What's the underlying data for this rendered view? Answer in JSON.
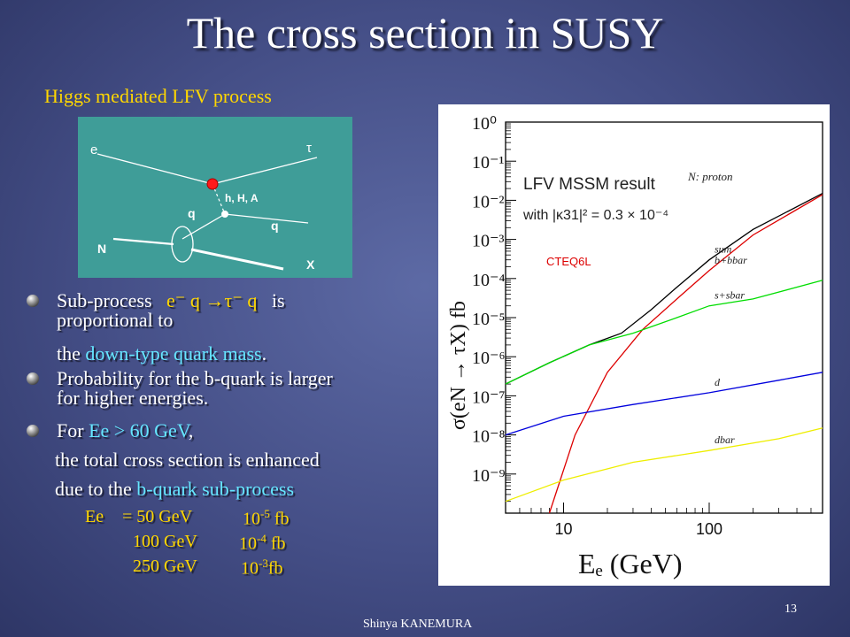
{
  "slide": {
    "title": "The cross section in SUSY",
    "subtitle": "Higgs mediated LFV process",
    "page_number": "13",
    "footer": "Shinya KANEMURA"
  },
  "diagram": {
    "labels": {
      "e": "e",
      "tau": "τ",
      "higgs": "h, H, A",
      "q_left": "q",
      "q_right": "q",
      "N": "N",
      "X": "X"
    }
  },
  "bullets": {
    "b1_prefix": "Sub-process",
    "b1_process": "e⁻ q →τ⁻ q",
    "b1_suffix": "is",
    "b1_line2": "proportional to",
    "b1_line3_prefix": "the",
    "b1_line3_hl": "down-type quark mass",
    "b1_line3_suffix": ".",
    "b2_line1": "Probability for the b-quark is larger",
    "b2_line2": "for higher energies.",
    "b3_prefix": "For",
    "b3_hl": "Ee > 60 GeV",
    "b3_suffix": ",",
    "b3_line2": "the total cross section is enhanced",
    "b3_line3_prefix": "due to the",
    "b3_line3_hl": "b-quark sub-process"
  },
  "energy_table": {
    "label": "Ee",
    "rows": [
      {
        "energy": "= 50 GeV",
        "base": "10",
        "exp": "-5",
        "unit": " fb"
      },
      {
        "energy": "100 GeV",
        "base": "10",
        "exp": "-4",
        "unit": " fb"
      },
      {
        "energy": "250 GeV",
        "base": "10",
        "exp": "-3",
        "unit": "fb"
      }
    ]
  },
  "chart_data": {
    "type": "line",
    "title": "LFV MSSM result",
    "subtitle": "with |κ31|² = 0.3 × 10⁻⁴",
    "note": "N: proton",
    "pdf_label": "CTEQ6L",
    "xlabel": "Eₑ (GeV)",
    "ylabel": "σ(eN → τX) fb",
    "xscale": "log",
    "yscale": "log",
    "xlim": [
      4,
      600
    ],
    "ylim": [
      1e-10,
      1
    ],
    "x_ticks": [
      "10",
      "100"
    ],
    "y_ticks": [
      "10⁰",
      "10⁻¹",
      "10⁻²",
      "10⁻³",
      "10⁻⁴",
      "10⁻⁵",
      "10⁻⁶",
      "10⁻⁷",
      "10⁻⁸",
      "10⁻⁹"
    ],
    "series": [
      {
        "name": "sum",
        "color": "#000000",
        "x": [
          4,
          8,
          15,
          25,
          40,
          60,
          100,
          200,
          600
        ],
        "y": [
          2e-07,
          7e-07,
          2e-06,
          4e-06,
          1.6e-05,
          6e-05,
          0.0003,
          0.0018,
          0.015
        ]
      },
      {
        "name": "b+bbar",
        "color": "#dd0000",
        "x": [
          8,
          12,
          20,
          35,
          60,
          100,
          200,
          600
        ],
        "y": [
          1e-10,
          1e-08,
          4e-07,
          5e-06,
          3e-05,
          0.00016,
          0.0013,
          0.014
        ]
      },
      {
        "name": "s+sbar",
        "color": "#00dd00",
        "x": [
          4,
          8,
          15,
          30,
          60,
          100,
          200,
          600
        ],
        "y": [
          2e-07,
          7e-07,
          2e-06,
          4e-06,
          1e-05,
          2e-05,
          3e-05,
          9e-05
        ]
      },
      {
        "name": "d",
        "color": "#0000dd",
        "x": [
          4,
          10,
          30,
          100,
          300,
          600
        ],
        "y": [
          1e-08,
          3e-08,
          6e-08,
          1.2e-07,
          2.5e-07,
          4e-07
        ]
      },
      {
        "name": "dbar",
        "color": "#eeee00",
        "x": [
          4,
          10,
          30,
          100,
          300,
          600
        ],
        "y": [
          2e-10,
          7e-10,
          2e-09,
          4e-09,
          8e-09,
          1.5e-08
        ]
      }
    ]
  }
}
